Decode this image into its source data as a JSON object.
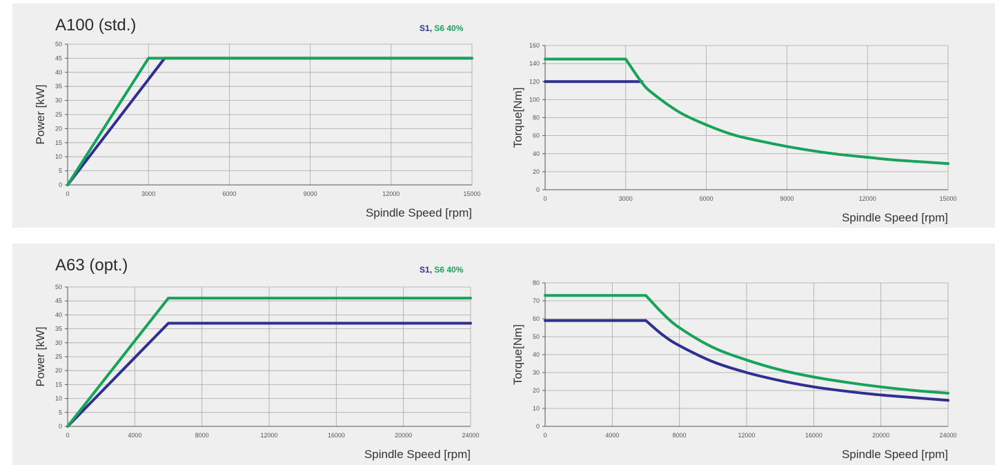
{
  "panels": [
    {
      "title": "A100 (std.)",
      "legend": {
        "s1": "S1",
        "sep": ",",
        "s6": "S6 40%"
      }
    },
    {
      "title": "A63 (opt.)",
      "legend": {
        "s1": "S1",
        "sep": ",",
        "s6": "S6 40%"
      }
    }
  ],
  "colors": {
    "s1": "#2f2f8f",
    "s6": "#17a35a",
    "background": "#efefef",
    "grid": "#a8a8a8"
  },
  "chart_data": [
    {
      "id": "a100-power",
      "type": "line",
      "title": "A100 (std.)",
      "xlabel": "Spindle Speed [rpm]",
      "ylabel": "Power [kW]",
      "xlim": [
        0,
        15000
      ],
      "ylim": [
        0,
        50
      ],
      "xticks": [
        0,
        3000,
        6000,
        9000,
        12000,
        15000
      ],
      "yticks": [
        0,
        5,
        10,
        15,
        20,
        25,
        30,
        35,
        40,
        45,
        50
      ],
      "xgrid": [
        0,
        3000,
        6000,
        9000,
        12000,
        15000
      ],
      "ygrid": [
        5,
        10,
        15,
        20,
        25,
        30,
        35,
        40,
        45,
        50
      ],
      "grid": true,
      "series": [
        {
          "name": "S1",
          "color": "#2f2f8f",
          "x": [
            0,
            3600,
            15000
          ],
          "y": [
            0,
            45,
            45
          ]
        },
        {
          "name": "S6 40%",
          "color": "#17a35a",
          "x": [
            0,
            3000,
            15000
          ],
          "y": [
            0,
            45,
            45
          ]
        }
      ]
    },
    {
      "id": "a100-torque",
      "type": "line",
      "xlabel": "Spindle Speed [rpm]",
      "ylabel": "Torque[Nm]",
      "xlim": [
        0,
        15000
      ],
      "ylim": [
        0,
        160
      ],
      "xticks": [
        0,
        3000,
        6000,
        9000,
        12000,
        15000
      ],
      "yticks": [
        0,
        20,
        40,
        60,
        80,
        100,
        120,
        140,
        160
      ],
      "xgrid": [
        0,
        3000,
        6000,
        9000,
        12000,
        15000
      ],
      "ygrid": [
        20,
        40,
        60,
        80,
        100,
        120,
        140,
        160
      ],
      "grid": true,
      "series": [
        {
          "name": "S1",
          "color": "#2f2f8f",
          "x": [
            0,
            3600
          ],
          "y": [
            120,
            120
          ]
        },
        {
          "name": "S6 40%",
          "color": "#17a35a",
          "x": [
            0,
            3000,
            3600,
            4000,
            5000,
            6000,
            7000,
            8000,
            9000,
            10000,
            11000,
            12000,
            13000,
            14000,
            15000
          ],
          "y": [
            145,
            145,
            119,
            107,
            86,
            72,
            61,
            54,
            48,
            43,
            39,
            36,
            33,
            31,
            29
          ]
        }
      ]
    },
    {
      "id": "a63-power",
      "type": "line",
      "title": "A63 (opt.)",
      "xlabel": "Spindle Speed [rpm]",
      "ylabel": "Power [kW]",
      "xlim": [
        0,
        24000
      ],
      "ylim": [
        0,
        50
      ],
      "xticks": [
        0,
        4000,
        8000,
        12000,
        16000,
        20000,
        24000
      ],
      "yticks": [
        0,
        5,
        10,
        15,
        20,
        25,
        30,
        35,
        40,
        45,
        50
      ],
      "xgrid": [
        0,
        4000,
        8000,
        12000,
        16000,
        20000,
        24000
      ],
      "ygrid": [
        5,
        10,
        15,
        20,
        25,
        30,
        35,
        40,
        45,
        50
      ],
      "grid": true,
      "series": [
        {
          "name": "S1",
          "color": "#2f2f8f",
          "x": [
            0,
            6000,
            24000
          ],
          "y": [
            0,
            37,
            37
          ]
        },
        {
          "name": "S6 40%",
          "color": "#17a35a",
          "x": [
            0,
            6000,
            24000
          ],
          "y": [
            0,
            46,
            46
          ]
        }
      ]
    },
    {
      "id": "a63-torque",
      "type": "line",
      "xlabel": "Spindle Speed [rpm]",
      "ylabel": "Torque[Nm]",
      "xlim": [
        0,
        24000
      ],
      "ylim": [
        0,
        80
      ],
      "xticks": [
        0,
        4000,
        8000,
        12000,
        16000,
        20000,
        24000
      ],
      "yticks": [
        0,
        10,
        20,
        30,
        40,
        50,
        60,
        70,
        80
      ],
      "xgrid": [
        0,
        4000,
        8000,
        12000,
        16000,
        20000,
        24000
      ],
      "ygrid": [
        10,
        20,
        30,
        40,
        50,
        60,
        70,
        80
      ],
      "grid": true,
      "series": [
        {
          "name": "S1",
          "color": "#2f2f8f",
          "x": [
            0,
            6000,
            7000,
            8000,
            10000,
            12000,
            14000,
            16000,
            18000,
            20000,
            22000,
            24000
          ],
          "y": [
            59,
            59,
            51,
            45,
            36,
            30,
            25.5,
            22,
            19.5,
            17.5,
            16,
            14.5
          ]
        },
        {
          "name": "S6 40%",
          "color": "#17a35a",
          "x": [
            0,
            6000,
            7000,
            8000,
            10000,
            12000,
            14000,
            16000,
            18000,
            20000,
            22000,
            24000
          ],
          "y": [
            73,
            73,
            63,
            55,
            44,
            37,
            31.5,
            27.5,
            24.5,
            22,
            20,
            18.5
          ]
        }
      ]
    }
  ]
}
